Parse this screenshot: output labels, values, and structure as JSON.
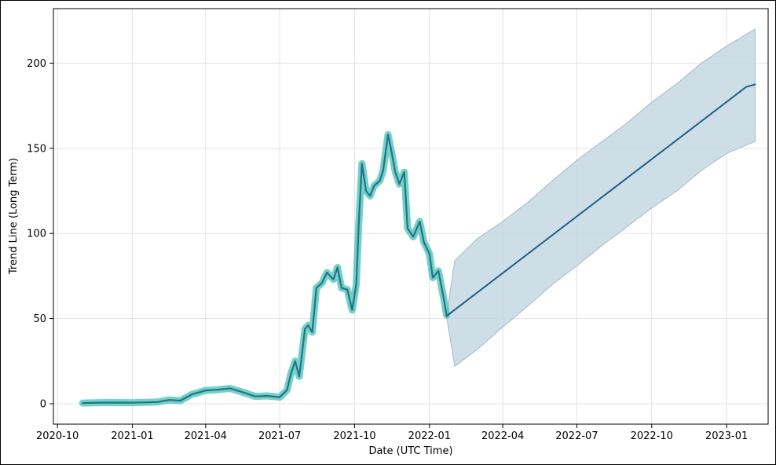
{
  "chart_data": {
    "type": "line",
    "xlabel": "Date (UTC Time)",
    "ylabel": "Trend Line (Long Term)",
    "xlim": [
      "2020-09-26",
      "2023-02-21"
    ],
    "ylim": [
      -12,
      232
    ],
    "grid": true,
    "x_ticks": [
      "2020-10",
      "2021-01",
      "2021-04",
      "2021-07",
      "2021-10",
      "2022-01",
      "2022-04",
      "2022-07",
      "2022-10",
      "2023-01"
    ],
    "y_ticks": [
      0,
      50,
      100,
      150,
      200
    ],
    "colors": {
      "history_line": "#2a6f8f",
      "history_glow": "#40c4b0",
      "forecast_line": "#1f5f86",
      "forecast_band": "#c6d8e2",
      "band_edge": "#9fbccc",
      "grid": "#e3e3e3"
    },
    "series": [
      {
        "kind": "history",
        "points": [
          [
            "2020-11-01",
            0.4
          ],
          [
            "2020-12-01",
            0.7
          ],
          [
            "2021-01-01",
            0.6
          ],
          [
            "2021-02-01",
            1.0
          ],
          [
            "2021-02-15",
            2.2
          ],
          [
            "2021-03-01",
            1.8
          ],
          [
            "2021-03-15",
            5.5
          ],
          [
            "2021-04-01",
            7.8
          ],
          [
            "2021-04-15",
            8.2
          ],
          [
            "2021-05-01",
            9.0
          ],
          [
            "2021-05-15",
            7.0
          ],
          [
            "2021-06-01",
            4.3
          ],
          [
            "2021-06-15",
            4.6
          ],
          [
            "2021-07-01",
            3.8
          ],
          [
            "2021-07-10",
            8.0
          ],
          [
            "2021-07-15",
            18.0
          ],
          [
            "2021-07-20",
            25.0
          ],
          [
            "2021-07-25",
            16.0
          ],
          [
            "2021-08-01",
            44.0
          ],
          [
            "2021-08-05",
            46.0
          ],
          [
            "2021-08-10",
            42.0
          ],
          [
            "2021-08-15",
            68.0
          ],
          [
            "2021-08-22",
            71.0
          ],
          [
            "2021-08-28",
            77.0
          ],
          [
            "2021-09-05",
            73.0
          ],
          [
            "2021-09-10",
            80.0
          ],
          [
            "2021-09-15",
            68.0
          ],
          [
            "2021-09-22",
            67.0
          ],
          [
            "2021-09-28",
            55.0
          ],
          [
            "2021-10-03",
            70.0
          ],
          [
            "2021-10-06",
            105.0
          ],
          [
            "2021-10-10",
            141.0
          ],
          [
            "2021-10-15",
            125.0
          ],
          [
            "2021-10-20",
            122.0
          ],
          [
            "2021-10-25",
            128.0
          ],
          [
            "2021-11-01",
            131.0
          ],
          [
            "2021-11-05",
            137.0
          ],
          [
            "2021-11-11",
            158.0
          ],
          [
            "2021-11-15",
            149.0
          ],
          [
            "2021-11-20",
            136.0
          ],
          [
            "2021-11-25",
            129.0
          ],
          [
            "2021-12-01",
            136.0
          ],
          [
            "2021-12-05",
            103.0
          ],
          [
            "2021-12-12",
            98.0
          ],
          [
            "2021-12-20",
            107.0
          ],
          [
            "2021-12-25",
            95.0
          ],
          [
            "2022-01-01",
            88.0
          ],
          [
            "2022-01-05",
            74.0
          ],
          [
            "2022-01-12",
            78.0
          ],
          [
            "2022-01-18",
            63.0
          ],
          [
            "2022-01-22",
            52.0
          ]
        ]
      },
      {
        "kind": "forecast",
        "points": [
          [
            "2022-01-22",
            51.5
          ],
          [
            "2023-01-25",
            186.0
          ],
          [
            "2023-02-05",
            187.5
          ]
        ]
      },
      {
        "kind": "band",
        "upper": [
          [
            "2022-01-22",
            52.0
          ],
          [
            "2022-02-01",
            84.0
          ],
          [
            "2022-03-01",
            97.0
          ],
          [
            "2022-04-01",
            107.0
          ],
          [
            "2022-05-01",
            118.0
          ],
          [
            "2022-06-01",
            131.0
          ],
          [
            "2022-07-01",
            143.0
          ],
          [
            "2022-08-01",
            154.0
          ],
          [
            "2022-09-01",
            165.0
          ],
          [
            "2022-10-01",
            177.0
          ],
          [
            "2022-11-01",
            188.0
          ],
          [
            "2022-12-01",
            200.0
          ],
          [
            "2023-01-01",
            210.0
          ],
          [
            "2023-02-05",
            220.0
          ]
        ],
        "lower": [
          [
            "2022-01-22",
            51.0
          ],
          [
            "2022-02-01",
            22.0
          ],
          [
            "2022-03-01",
            32.0
          ],
          [
            "2022-04-01",
            45.0
          ],
          [
            "2022-05-01",
            57.0
          ],
          [
            "2022-06-01",
            70.0
          ],
          [
            "2022-07-01",
            81.0
          ],
          [
            "2022-08-01",
            93.0
          ],
          [
            "2022-09-01",
            104.0
          ],
          [
            "2022-10-01",
            115.0
          ],
          [
            "2022-11-01",
            125.0
          ],
          [
            "2022-12-01",
            137.0
          ],
          [
            "2023-01-01",
            147.0
          ],
          [
            "2023-02-05",
            154.0
          ]
        ]
      }
    ]
  }
}
